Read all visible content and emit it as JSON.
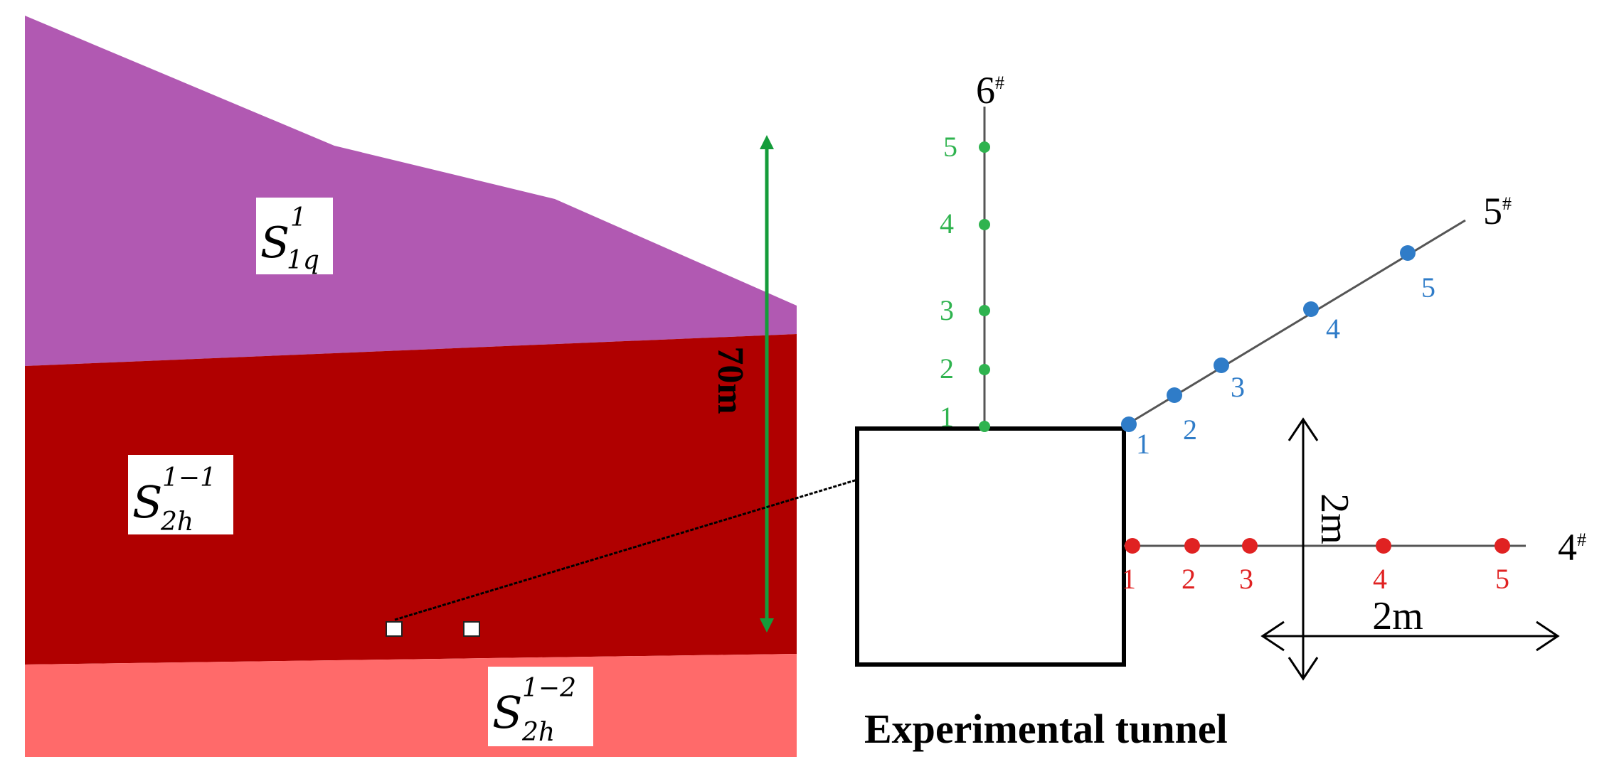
{
  "colors": {
    "layer_top": "#B159B2",
    "layer_middle": "#B00000",
    "layer_bottom": "#FF6A6A",
    "height_arrow": "#149C3A",
    "borehole_6": "#2FB34F",
    "borehole_5": "#2F7CC8",
    "borehole_4": "#E02222",
    "line": "#555555",
    "text": "#000000"
  },
  "strata": {
    "top": {
      "base": "S",
      "sup": "1",
      "sub": "1q"
    },
    "middle": {
      "base": "S",
      "sup": "1−1",
      "sub": "2h"
    },
    "bottom": {
      "base": "S",
      "sup": "1−2",
      "sub": "2h"
    }
  },
  "height_label": "70m",
  "boreholes": {
    "b6": {
      "label": "6",
      "mark": "#",
      "points": [
        "1",
        "2",
        "3",
        "4",
        "5"
      ]
    },
    "b5": {
      "label": "5",
      "mark": "#",
      "points": [
        "1",
        "2",
        "3",
        "4",
        "5"
      ]
    },
    "b4": {
      "label": "4",
      "mark": "#",
      "points": [
        "1",
        "2",
        "3",
        "4",
        "5"
      ]
    }
  },
  "scale": {
    "vertical": "2m",
    "horizontal": "2m"
  },
  "caption": "Experimental tunnel"
}
